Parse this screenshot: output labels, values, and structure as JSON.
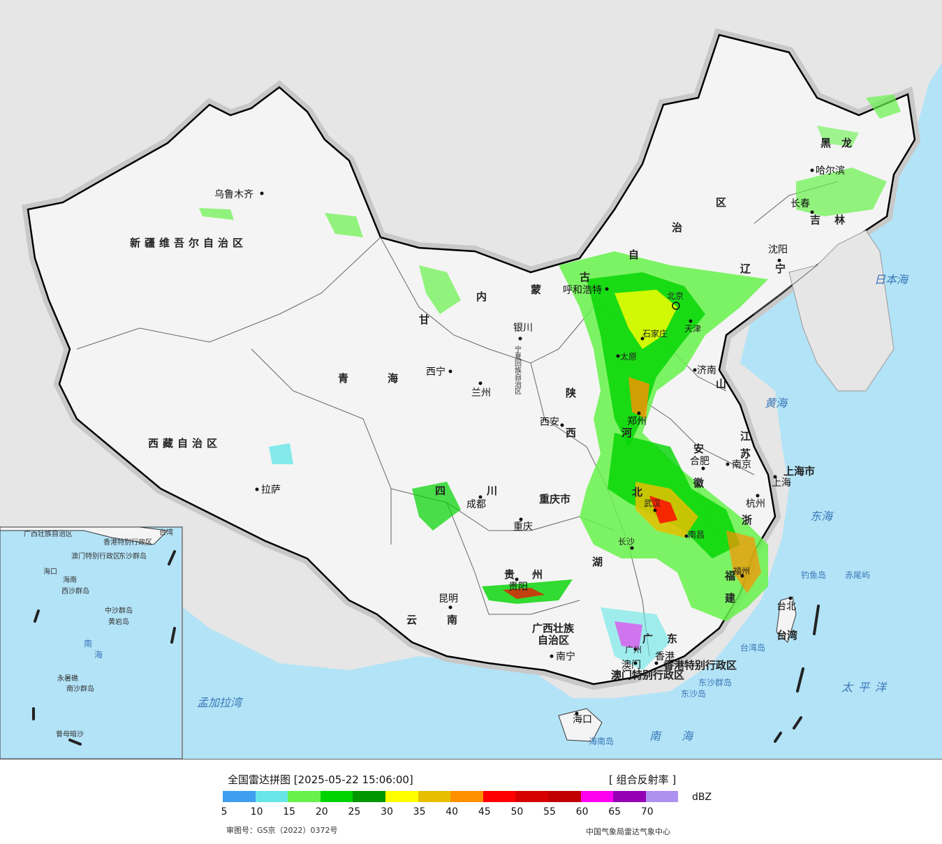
{
  "map": {
    "provinces": [
      "新疆维吾尔自治区",
      "西藏自治区",
      "青",
      "海",
      "内",
      "蒙",
      "古",
      "自",
      "治",
      "区",
      "甘",
      "四",
      "川",
      "云",
      "南",
      "贵",
      "州",
      "陕",
      "西",
      "山",
      "河",
      "北",
      "安",
      "徽",
      "湖",
      "江",
      "苏",
      "浙",
      "福",
      "建",
      "广",
      "东",
      "广西壮族",
      "自治区",
      "黑",
      "龙",
      "吉",
      "林",
      "辽",
      "宁",
      "宁夏回族自治区",
      "重庆市",
      "上海市",
      "香港特别行政区",
      "澳门特别行政区",
      "台湾"
    ],
    "cities": [
      "乌鲁木齐",
      "拉萨",
      "西宁",
      "兰州",
      "银川",
      "呼和浩特",
      "北京",
      "天津",
      "石家庄",
      "太原",
      "济南",
      "西安",
      "郑州",
      "合肥",
      "南京",
      "上海",
      "杭州",
      "武汉",
      "长沙",
      "南昌",
      "福州",
      "成都",
      "重庆",
      "贵阳",
      "昆明",
      "南宁",
      "广州",
      "香港",
      "澳门",
      "海口",
      "台北",
      "沈阳",
      "长春",
      "哈尔滨"
    ],
    "seas": [
      "日本海",
      "黄海",
      "东海",
      "太平洋",
      "南海",
      "孟加拉湾",
      "南海"
    ],
    "islands": [
      "钓鱼岛",
      "赤尾屿",
      "台湾岛",
      "东沙群岛",
      "东沙岛",
      "海南岛"
    ],
    "inset_labels": [
      "广西壮族自治区",
      "香港特别行政区",
      "澳门特别行政区",
      "东沙群岛",
      "海口",
      "海南",
      "西沙群岛",
      "中沙群岛",
      "黄岩岛",
      "永暑礁",
      "南沙群岛",
      "曾母暗沙",
      "南",
      "海",
      "台湾"
    ]
  },
  "legend": {
    "title": "全国雷达拼图 [2025-05-22 15:06:00]",
    "product": "[ 组合反射率 ]",
    "unit": "dBZ",
    "colors": [
      "#3f9ef0",
      "#66e6e8",
      "#66f24a",
      "#00d400",
      "#009600",
      "#ffff00",
      "#e6c000",
      "#ff9000",
      "#ff0000",
      "#d60000",
      "#c00000",
      "#ff00f0",
      "#9600b4",
      "#ad90f0"
    ],
    "ticks": [
      "5",
      "10",
      "15",
      "20",
      "25",
      "30",
      "35",
      "40",
      "45",
      "50",
      "55",
      "60",
      "65",
      "70"
    ],
    "review_number": "审图号：GS京（2022）0372号",
    "organization": "中国气象局雷达气象中心"
  }
}
